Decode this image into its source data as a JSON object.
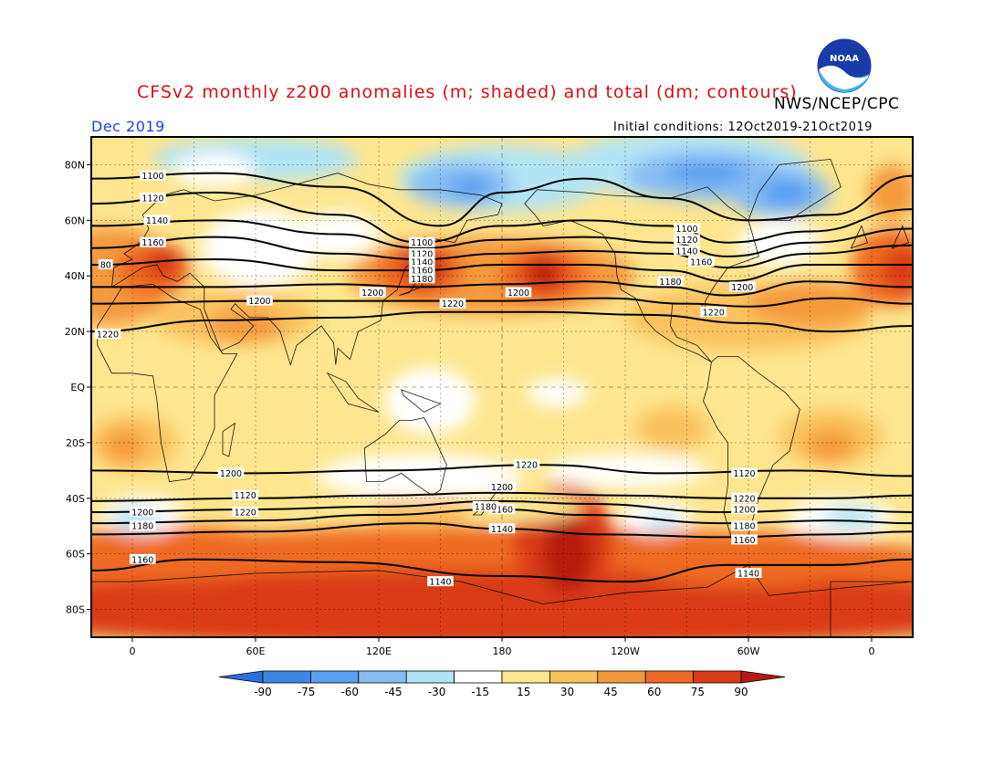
{
  "title": "CFSv2 monthly z200 anomalies (m; shaded) and total (dm; contours)",
  "organization": "NWS/NCEP/CPC",
  "logo_text": "NOAA",
  "valid_month": "Dec 2019",
  "initial_conditions": "Initial conditions: 12Oct2019-21Oct2019",
  "map": {
    "lat_labels": [
      "80N",
      "60N",
      "40N",
      "20N",
      "EQ",
      "20S",
      "40S",
      "60S",
      "80S"
    ],
    "lon_labels": [
      "0",
      "60E",
      "120E",
      "180",
      "120W",
      "60W",
      "0"
    ],
    "contour_labels": [
      "1100",
      "1120",
      "1140",
      "1160",
      "80",
      "1220",
      "1200",
      "1100",
      "1120",
      "1140",
      "1160",
      "1180",
      "1200",
      "1220",
      "1200",
      "1100",
      "1120",
      "1140",
      "1160",
      "1180",
      "1200",
      "1220",
      "1220",
      "1200",
      "1160",
      "1140",
      "1180",
      "1200",
      "1120",
      "1220",
      "1200",
      "1180",
      "1160",
      "1140",
      "1120",
      "1120",
      "1220",
      "1200",
      "1180",
      "1160",
      "1140",
      "1120"
    ]
  },
  "colorbar": {
    "tick_labels": [
      "-90",
      "-75",
      "-60",
      "-45",
      "-30",
      "-15",
      "15",
      "30",
      "45",
      "60",
      "75",
      "90"
    ],
    "colors": [
      "#2a6fdc",
      "#3d86e6",
      "#5a9ff0",
      "#86bdf3",
      "#b2e4f5",
      "#ffffff",
      "#fde68e",
      "#fbc25e",
      "#f59a3c",
      "#ef6a24",
      "#d93a16",
      "#b51a10"
    ]
  }
}
